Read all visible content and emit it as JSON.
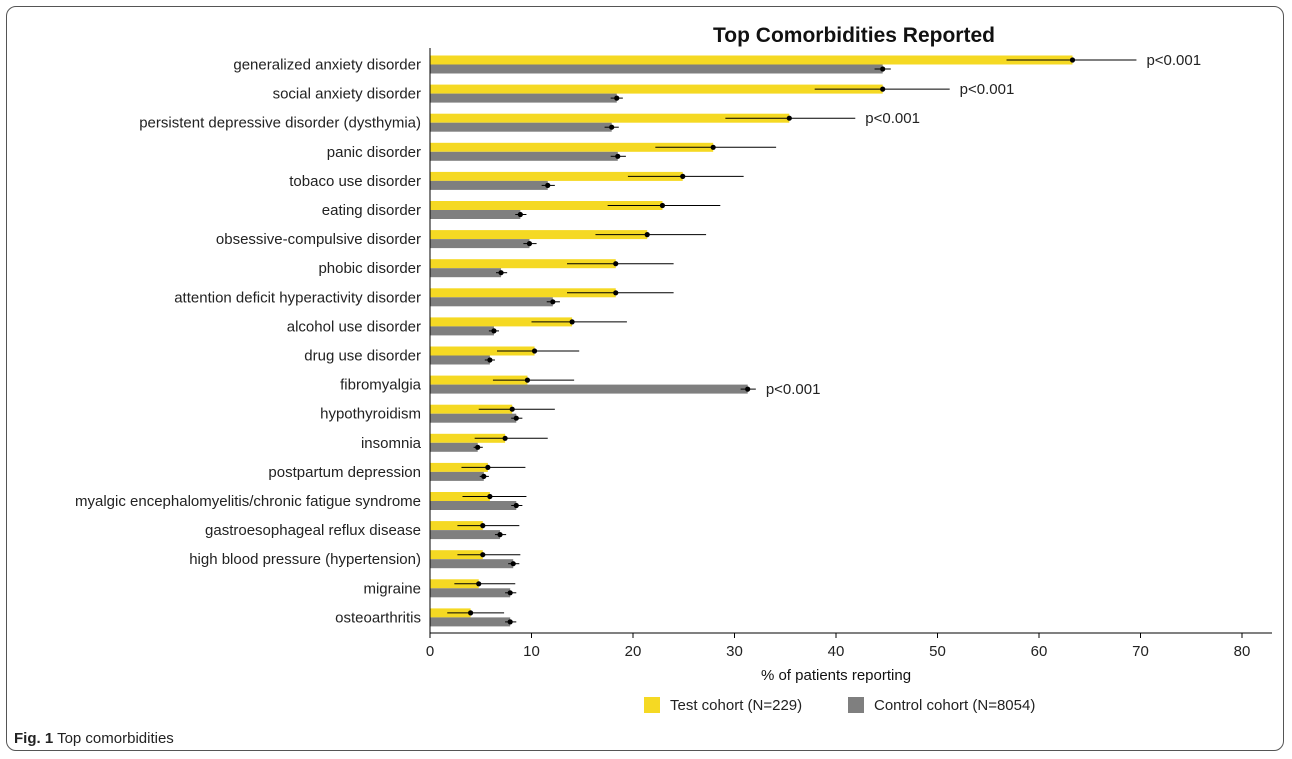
{
  "chart_data": {
    "type": "bar",
    "orientation": "horizontal",
    "title": "Top Comorbidities Reported",
    "xlabel": "% of patients reporting",
    "xlim": [
      0,
      80
    ],
    "xticks": [
      0,
      10,
      20,
      30,
      40,
      50,
      60,
      70,
      80
    ],
    "grid": false,
    "legend_position": "bottom",
    "categories": [
      "generalized anxiety disorder",
      "social anxiety disorder",
      "persistent depressive disorder (dysthymia)",
      "panic disorder",
      "tobaco use disorder",
      "eating disorder",
      "obsessive-compulsive  disorder",
      "phobic disorder",
      "attention deficit hyperactivity disorder",
      "alcohol use disorder",
      "drug use disorder",
      "fibromyalgia",
      "hypothyroidism",
      "insomnia",
      "postpartum depression",
      "myalgic encephalomyelitis/chronic fatigue syndrome",
      "gastroesophageal reflux disease",
      "high blood pressure (hypertension)",
      "migraine",
      "osteoarthritis"
    ],
    "series": [
      {
        "name": "Test cohort (N=229)",
        "color": "#f5d923",
        "values": [
          63.3,
          44.6,
          35.4,
          27.9,
          24.9,
          22.9,
          21.4,
          18.3,
          18.3,
          14.0,
          10.3,
          9.6,
          8.1,
          7.4,
          5.7,
          5.9,
          5.2,
          5.2,
          4.8,
          4.0
        ],
        "ci_low": [
          56.8,
          37.9,
          29.1,
          22.2,
          19.5,
          17.5,
          16.3,
          13.5,
          13.5,
          10.0,
          6.6,
          6.2,
          4.8,
          4.4,
          3.1,
          3.2,
          2.7,
          2.7,
          2.4,
          1.7
        ],
        "ci_high": [
          69.6,
          51.2,
          41.9,
          34.1,
          30.9,
          28.6,
          27.2,
          24.0,
          24.0,
          19.4,
          14.7,
          14.2,
          12.3,
          11.6,
          9.4,
          9.5,
          8.8,
          8.9,
          8.4,
          7.3
        ]
      },
      {
        "name": "Control cohort (N=8054)",
        "color": "#7f7f7f",
        "values": [
          44.6,
          18.4,
          17.9,
          18.5,
          11.6,
          8.9,
          9.8,
          7.0,
          12.1,
          6.3,
          5.9,
          31.3,
          8.5,
          4.7,
          5.3,
          8.5,
          6.9,
          8.2,
          7.9,
          7.9
        ],
        "ci_low": [
          43.8,
          17.8,
          17.2,
          17.8,
          11.0,
          8.4,
          9.2,
          6.5,
          11.5,
          5.8,
          5.4,
          30.6,
          8.0,
          4.3,
          4.9,
          8.0,
          6.4,
          7.7,
          7.4,
          7.4
        ],
        "ci_high": [
          45.4,
          19.0,
          18.6,
          19.3,
          12.3,
          9.5,
          10.5,
          7.6,
          12.8,
          6.8,
          6.4,
          32.1,
          9.1,
          5.2,
          5.8,
          9.1,
          7.5,
          8.8,
          8.5,
          8.5
        ]
      }
    ],
    "annotations": [
      {
        "category": "generalized anxiety disorder",
        "text": "p<0.001"
      },
      {
        "category": "social anxiety disorder",
        "text": "p<0.001"
      },
      {
        "category": "persistent depressive disorder (dysthymia)",
        "text": "p<0.001"
      },
      {
        "category": "fibromyalgia",
        "text": "p<0.001"
      }
    ]
  },
  "caption": {
    "label": "Fig. 1",
    "text": "Top comorbidities"
  }
}
